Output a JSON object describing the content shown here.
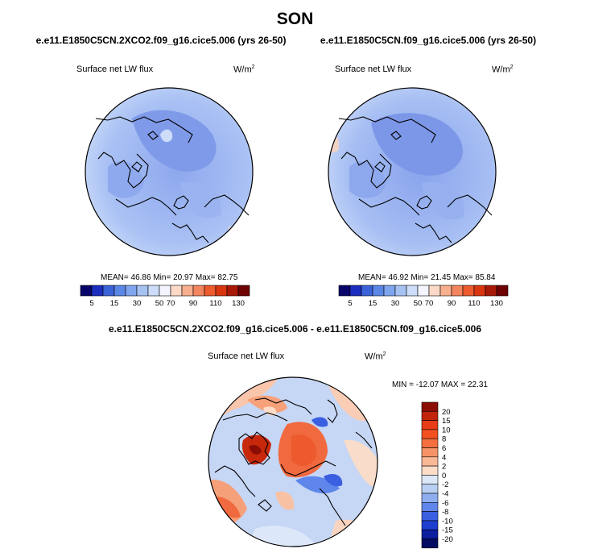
{
  "page": {
    "title": "SON"
  },
  "chart_data": [
    {
      "type": "heatmap",
      "projection": "north polar stereographic",
      "case": "e.e11.E1850C5CN.2XCO2.f09_g16.cice5.006 (yrs 26-50)",
      "variable": "Surface net LW flux",
      "units": "W/m",
      "units_exp": "2",
      "stats": {
        "mean_label": "MEAN=",
        "mean": "46.86",
        "min_label": "Min=",
        "min": "20.97",
        "max_label": "Max=",
        "max": "82.75"
      },
      "colorbar": {
        "levels": [
          "5",
          "15",
          "30",
          "50",
          "70",
          "90",
          "110",
          "130"
        ],
        "colors": [
          "#08056a",
          "#1c2ec0",
          "#3b63d8",
          "#5a87e6",
          "#7ea5ee",
          "#a6c2f3",
          "#cddcf8",
          "#f4f4ff",
          "#fbd9c6",
          "#f7af8e",
          "#f3855e",
          "#ec5a2e",
          "#d8360f",
          "#a91907",
          "#6d0303"
        ]
      }
    },
    {
      "type": "heatmap",
      "projection": "north polar stereographic",
      "case": "e.e11.E1850C5CN.f09_g16.cice5.006 (yrs 26-50)",
      "variable": "Surface net LW flux",
      "units": "W/m",
      "units_exp": "2",
      "stats": {
        "mean_label": "MEAN=",
        "mean": "46.92",
        "min_label": "Min=",
        "min": "21.45",
        "max_label": "Max=",
        "max": "85.84"
      },
      "colorbar": {
        "levels": [
          "5",
          "15",
          "30",
          "50",
          "70",
          "90",
          "110",
          "130"
        ],
        "colors": [
          "#08056a",
          "#1c2ec0",
          "#3b63d8",
          "#5a87e6",
          "#7ea5ee",
          "#a6c2f3",
          "#cddcf8",
          "#f4f4ff",
          "#fbd9c6",
          "#f7af8e",
          "#f3855e",
          "#ec5a2e",
          "#d8360f",
          "#a91907",
          "#6d0303"
        ]
      }
    },
    {
      "type": "heatmap",
      "projection": "north polar stereographic",
      "case": "e.e11.E1850C5CN.2XCO2.f09_g16.cice5.006 - e.e11.E1850C5CN.f09_g16.cice5.006",
      "variable": "Surface net LW flux",
      "units": "W/m",
      "units_exp": "2",
      "stats": {
        "min_label": "MIN =",
        "min": "-12.07",
        "max_label": "MAX =",
        "max": "22.31"
      },
      "colorbar": {
        "levels": [
          "20",
          "15",
          "10",
          "8",
          "6",
          "4",
          "2",
          "0",
          "-2",
          "-4",
          "-6",
          "-8",
          "-10",
          "-15",
          "-20"
        ],
        "colors": [
          "#8b0d05",
          "#c2240b",
          "#e73c15",
          "#f2511f",
          "#f56f3f",
          "#f79366",
          "#f9b896",
          "#fddcc8",
          "#dce8fa",
          "#b8cff2",
          "#8eaef0",
          "#5f86ea",
          "#3a5fe0",
          "#1e3ed0",
          "#0d1e9e",
          "#040c62"
        ]
      }
    }
  ]
}
